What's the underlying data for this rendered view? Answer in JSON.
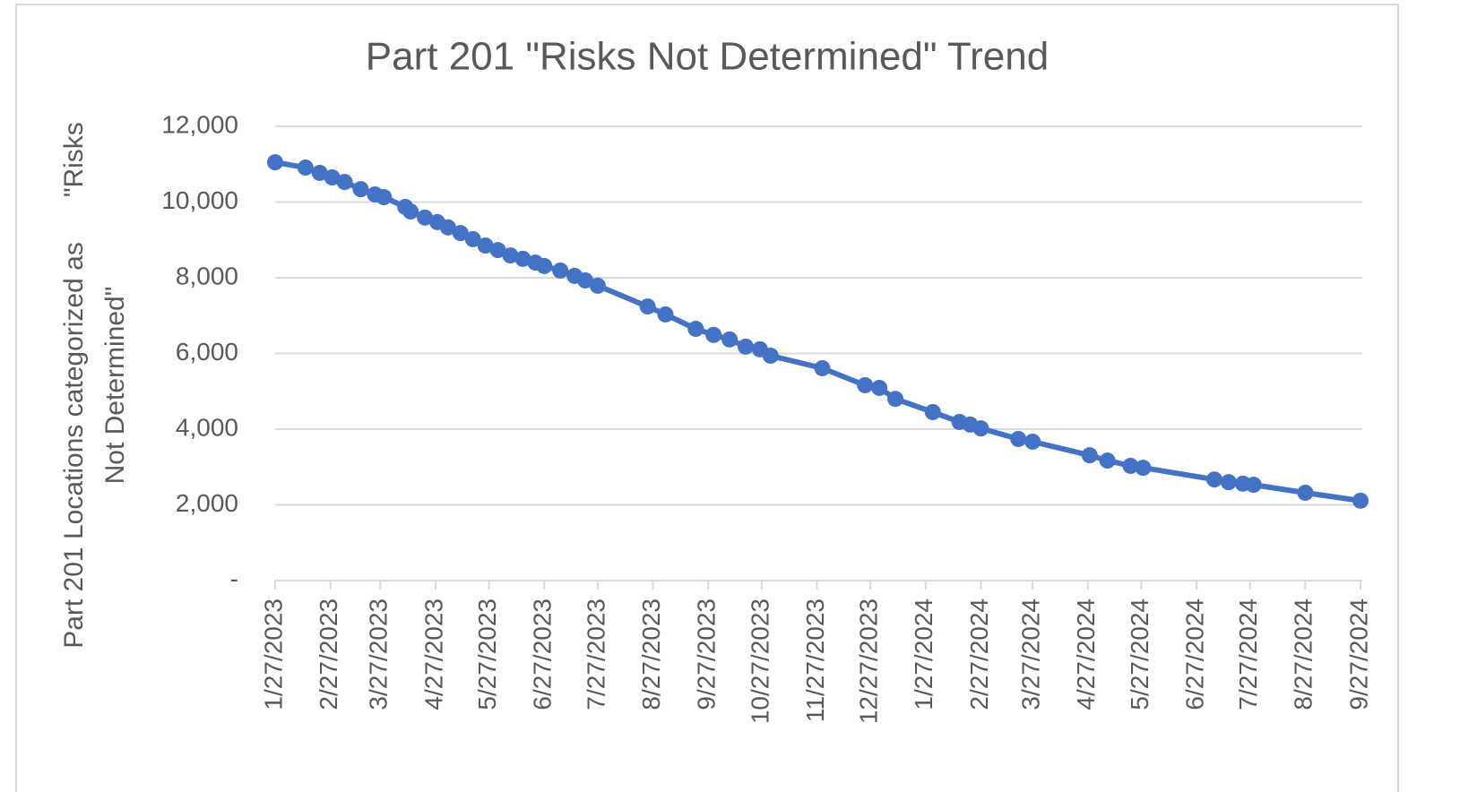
{
  "chart_data": {
    "type": "line",
    "title": "Part 201 \"Risks Not Determined\" Trend",
    "y_label": [
      "Part 201 Locations categorized as      \"Risks",
      "Not Determined\""
    ],
    "x": [
      "1/27/2023",
      "2/13/2023",
      "2/21/2023",
      "2/28/2023",
      "3/7/2023",
      "3/16/2023",
      "3/24/2023",
      "3/29/2023",
      "4/10/2023",
      "4/13/2023",
      "4/21/2023",
      "4/28/2023",
      "5/4/2023",
      "5/11/2023",
      "5/18/2023",
      "5/25/2023",
      "6/1/2023",
      "6/8/2023",
      "6/15/2023",
      "6/22/2023",
      "6/27/2023",
      "7/6/2023",
      "7/14/2023",
      "7/20/2023",
      "7/27/2023",
      "8/24/2023",
      "9/3/2023",
      "9/20/2023",
      "9/30/2023",
      "10/9/2023",
      "10/18/2023",
      "10/26/2023",
      "11/1/2023",
      "11/30/2023",
      "12/24/2023",
      "1/1/2024",
      "1/10/2024",
      "1/31/2024",
      "2/15/2024",
      "2/21/2024",
      "2/27/2024",
      "3/19/2024",
      "3/27/2024",
      "4/28/2024",
      "5/8/2024",
      "5/21/2024",
      "5/28/2024",
      "7/7/2024",
      "7/15/2024",
      "7/23/2024",
      "7/29/2024",
      "8/27/2024",
      "9/27/2024"
    ],
    "series": [
      {
        "name": "Risks Not Determined",
        "color": "#4472c4",
        "values": [
          11050,
          10910,
          10770,
          10650,
          10530,
          10340,
          10200,
          10130,
          9870,
          9750,
          9590,
          9470,
          9330,
          9180,
          9020,
          8850,
          8730,
          8590,
          8500,
          8400,
          8310,
          8190,
          8050,
          7930,
          7790,
          7240,
          7030,
          6650,
          6490,
          6370,
          6180,
          6110,
          5940,
          5610,
          5160,
          5090,
          4800,
          4450,
          4190,
          4120,
          4020,
          3740,
          3670,
          3310,
          3170,
          3030,
          2980,
          2670,
          2600,
          2560,
          2530,
          2320,
          2110
        ]
      }
    ],
    "xlim": [
      "1/27/2023",
      "9/27/2024"
    ],
    "xticks": [
      "1/27/2023",
      "2/27/2023",
      "3/27/2023",
      "4/27/2023",
      "5/27/2023",
      "6/27/2023",
      "7/27/2023",
      "8/27/2023",
      "9/27/2023",
      "10/27/2023",
      "11/27/2023",
      "12/27/2023",
      "1/27/2024",
      "2/27/2024",
      "3/27/2024",
      "4/27/2024",
      "5/27/2024",
      "6/27/2024",
      "7/27/2024",
      "8/27/2024",
      "9/27/2024"
    ],
    "ylim": [
      0,
      12000
    ],
    "yticks": [
      {
        "value": 0,
        "label": "-"
      },
      {
        "value": 2000,
        "label": "2,000"
      },
      {
        "value": 4000,
        "label": "4,000"
      },
      {
        "value": 6000,
        "label": "6,000"
      },
      {
        "value": 8000,
        "label": "8,000"
      },
      {
        "value": 10000,
        "label": "10,000"
      },
      {
        "value": 12000,
        "label": "12,000"
      }
    ],
    "grid": true
  }
}
